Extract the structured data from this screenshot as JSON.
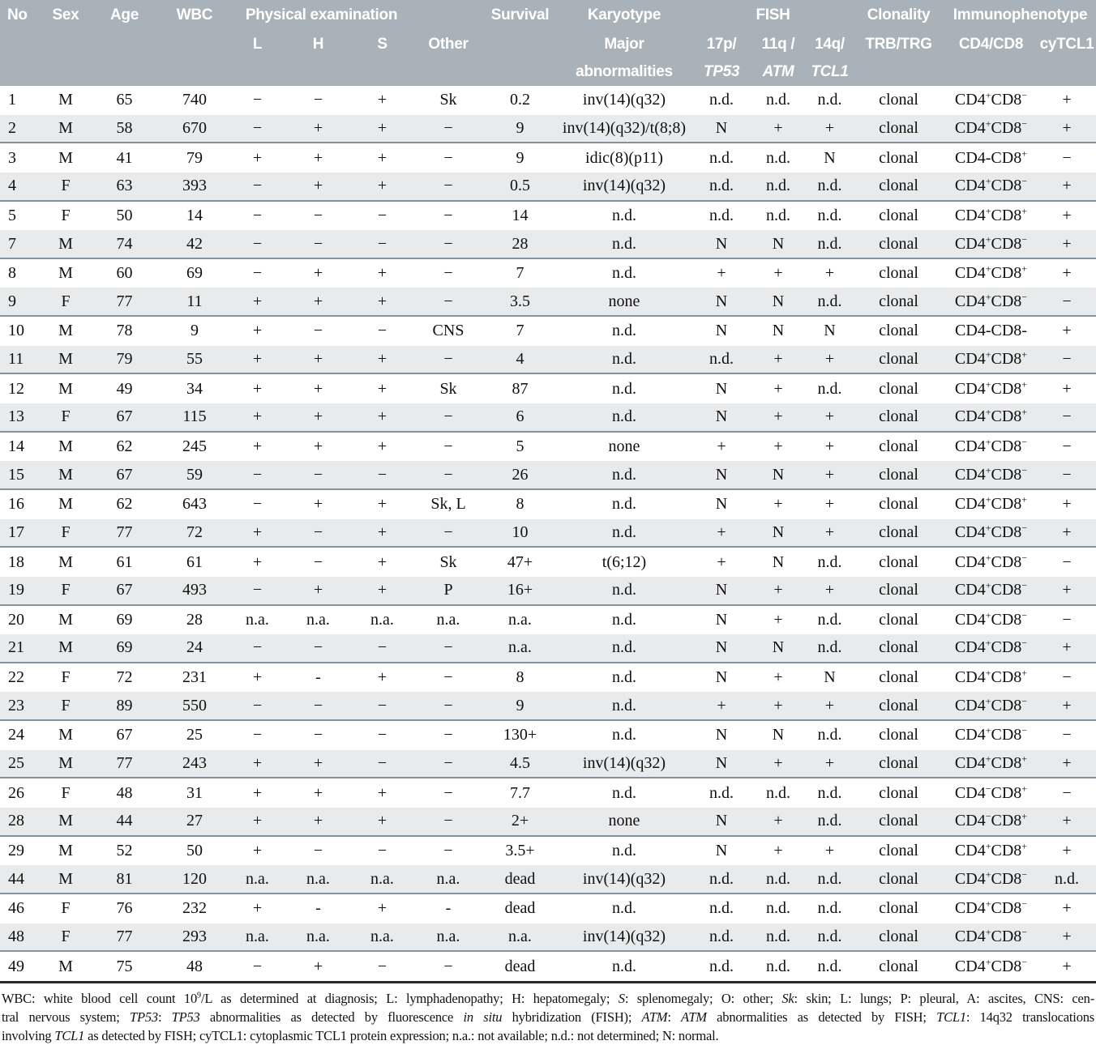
{
  "colors": {
    "header_bg": "#a9b2b9",
    "stripe_bg": "#e8eaec",
    "separator": "#8593a0",
    "bottom_rule": "#2a2a2a",
    "header_text": "#ffffff",
    "body_text": "#101010"
  },
  "table": {
    "header": {
      "no": "No",
      "sex": "Sex",
      "age": "Age",
      "wbc": "WBC",
      "physical_examination": "Physical examination",
      "l": "L",
      "h": "H",
      "s": "S",
      "other": "Other",
      "survival": "Survival",
      "karyotype_line1": "Karyotype",
      "karyotype_line2": "Major",
      "karyotype_line3": "abnormalities",
      "fish": "FISH",
      "tp53_line2": "17p/",
      "tp53_line3": "*TP53*",
      "atm_line2": "11q /",
      "atm_line3": "*ATM*",
      "tcl1_line2": "14q/",
      "tcl1_line3": "*TCL1*",
      "clonality_line1": "Clonality",
      "clonality_line2": "TRB/TRG",
      "immunophenotype_line1": "Immunophenotype",
      "immunophenotype_line2": "CD4/CD8",
      "cytcl1": "cyTCL1"
    },
    "column_keys": [
      "no",
      "sex",
      "age",
      "wbc",
      "exam_l",
      "exam_h",
      "exam_s",
      "exam_other",
      "survival",
      "karyotype",
      "fish_17p_tp53",
      "fish_11q_atm",
      "fish_14q_tcl1",
      "clonality",
      "immunophenotype",
      "cytcl1"
    ],
    "rows": [
      [
        "1",
        "M",
        "65",
        "740",
        "−",
        "−",
        "+",
        "Sk",
        "0.2",
        "inv(14)(q32)",
        "n.d.",
        "n.d.",
        "n.d.",
        "clonal",
        "CD4^+^CD8^−^",
        "+"
      ],
      [
        "2",
        "M",
        "58",
        "670",
        "−",
        "+",
        "+",
        "−",
        "9",
        "inv(14)(q32)/t(8;8)",
        "N",
        "+",
        "+",
        "clonal",
        "CD4^+^CD8^−^",
        "+"
      ],
      [
        "3",
        "M",
        "41",
        "79",
        "+",
        "+",
        "+",
        "−",
        "9",
        "idic(8)(p11)",
        "n.d.",
        "n.d.",
        "N",
        "clonal",
        "CD4-CD8^+^",
        "−"
      ],
      [
        "4",
        "F",
        "63",
        "393",
        "−",
        "+",
        "+",
        "−",
        "0.5",
        "inv(14)(q32)",
        "n.d.",
        "n.d.",
        "n.d.",
        "clonal",
        "CD4^+^CD8^−^",
        "+"
      ],
      [
        "5",
        "F",
        "50",
        "14",
        "−",
        "−",
        "−",
        "−",
        "14",
        "n.d.",
        "n.d.",
        "n.d.",
        "n.d.",
        "clonal",
        "CD4^+^CD8^+^",
        "+"
      ],
      [
        "7",
        "M",
        "74",
        "42",
        "−",
        "−",
        "−",
        "−",
        "28",
        "n.d.",
        "N",
        "N",
        "n.d.",
        "clonal",
        "CD4^+^CD8^−^",
        "+"
      ],
      [
        "8",
        "M",
        "60",
        "69",
        "−",
        "+",
        "+",
        "−",
        "7",
        "n.d.",
        "+",
        "+",
        "+",
        "clonal",
        "CD4^+^CD8^+^",
        "+"
      ],
      [
        "9",
        "F",
        "77",
        "11",
        "+",
        "+",
        "+",
        "−",
        "3.5",
        "none",
        "N",
        "N",
        "n.d.",
        "clonal",
        "CD4^+^CD8^−^",
        "−"
      ],
      [
        "10",
        "M",
        "78",
        "9",
        "+",
        "−",
        "−",
        "CNS",
        "7",
        "n.d.",
        "N",
        "N",
        "N",
        "clonal",
        "CD4-CD8-",
        "+"
      ],
      [
        "11",
        "M",
        "79",
        "55",
        "+",
        "+",
        "+",
        "−",
        "4",
        "n.d.",
        "n.d.",
        "+",
        "+",
        "clonal",
        "CD4^+^CD8^+^",
        "−"
      ],
      [
        "12",
        "M",
        "49",
        "34",
        "+",
        "+",
        "+",
        "Sk",
        "87",
        "n.d.",
        "N",
        "+",
        "n.d.",
        "clonal",
        "CD4^+^CD8^+^",
        "+"
      ],
      [
        "13",
        "F",
        "67",
        "115",
        "+",
        "+",
        "+",
        "−",
        "6",
        "n.d.",
        "N",
        "+",
        "+",
        "clonal",
        "CD4^+^CD8^+^",
        "−"
      ],
      [
        "14",
        "M",
        "62",
        "245",
        "+",
        "+",
        "+",
        "−",
        "5",
        "none",
        "+",
        "+",
        "+",
        "clonal",
        "CD4^+^CD8^−^",
        "−"
      ],
      [
        "15",
        "M",
        "67",
        "59",
        "−",
        "−",
        "−",
        "−",
        "26",
        "n.d.",
        "N",
        "N",
        "+",
        "clonal",
        "CD4^+^CD8^−^",
        "−"
      ],
      [
        "16",
        "M",
        "62",
        "643",
        "−",
        "+",
        "+",
        "Sk, L",
        "8",
        "n.d.",
        "N",
        "+",
        "+",
        "clonal",
        "CD4^+^CD8^+^",
        "+"
      ],
      [
        "17",
        "F",
        "77",
        "72",
        "+",
        "−",
        "+",
        "−",
        "10",
        "n.d.",
        "+",
        "N",
        "+",
        "clonal",
        "CD4^+^CD8^−^",
        "+"
      ],
      [
        "18",
        "M",
        "61",
        "61",
        "+",
        "−",
        "+",
        "Sk",
        "47+",
        "t(6;12)",
        "+",
        "N",
        "n.d.",
        "clonal",
        "CD4^+^CD8^−^",
        "−"
      ],
      [
        "19",
        "F",
        "67",
        "493",
        "−",
        "+",
        "+",
        "P",
        "16+",
        "n.d.",
        "N",
        "+",
        "+",
        "clonal",
        "CD4^+^CD8^−^",
        "+"
      ],
      [
        "20",
        "M",
        "69",
        "28",
        "n.a.",
        "n.a.",
        "n.a.",
        "n.a.",
        "n.a.",
        "n.d.",
        "N",
        "+",
        "n.d.",
        "clonal",
        "CD4^+^CD8^−^",
        "−"
      ],
      [
        "21",
        "M",
        "69",
        "24",
        "−",
        "−",
        "−",
        "−",
        "n.a.",
        "n.d.",
        "N",
        "N",
        "n.d.",
        "clonal",
        "CD4^+^CD8^−^",
        "+"
      ],
      [
        "22",
        "F",
        "72",
        "231",
        "+",
        "-",
        "+",
        "−",
        "8",
        "n.d.",
        "N",
        "+",
        "N",
        "clonal",
        "CD4^+^CD8^+^",
        "−"
      ],
      [
        "23",
        "F",
        "89",
        "550",
        "−",
        "−",
        "−",
        "−",
        "9",
        "n.d.",
        "+",
        "+",
        "+",
        "clonal",
        "CD4^+^CD8^−^",
        "+"
      ],
      [
        "24",
        "M",
        "67",
        "25",
        "−",
        "−",
        "−",
        "−",
        "130+",
        "n.d.",
        "N",
        "N",
        "n.d.",
        "clonal",
        "CD4^+^CD8^−^",
        "−"
      ],
      [
        "25",
        "M",
        "77",
        "243",
        "+",
        "+",
        "−",
        "−",
        "4.5",
        "inv(14)(q32)",
        "N",
        "+",
        "+",
        "clonal",
        "CD4^+^CD8^+^",
        "+"
      ],
      [
        "26",
        "F",
        "48",
        "31",
        "+",
        "+",
        "+",
        "−",
        "7.7",
        "n.d.",
        "n.d.",
        "n.d.",
        "n.d.",
        "clonal",
        "CD4^−^CD8^+^",
        "−"
      ],
      [
        "28",
        "M",
        "44",
        "27",
        "+",
        "+",
        "+",
        "−",
        "2+",
        "none",
        "N",
        "+",
        "n.d.",
        "clonal",
        "CD4^−^CD8^+^",
        "+"
      ],
      [
        "29",
        "M",
        "52",
        "50",
        "+",
        "−",
        "−",
        "−",
        "3.5+",
        "n.d.",
        "N",
        "+",
        "+",
        "clonal",
        "CD4^+^CD8^+^",
        "+"
      ],
      [
        "44",
        "M",
        "81",
        "120",
        "n.a.",
        "n.a.",
        "n.a.",
        "n.a.",
        "dead",
        "inv(14)(q32)",
        "n.d.",
        "n.d.",
        "n.d.",
        "clonal",
        "CD4^+^CD8^−^",
        "n.d."
      ],
      [
        "46",
        "F",
        "76",
        "232",
        "+",
        "-",
        "+",
        "-",
        "dead",
        "n.d.",
        "n.d.",
        "n.d.",
        "n.d.",
        "clonal",
        "CD4^+^CD8^−^",
        "+"
      ],
      [
        "48",
        "F",
        "77",
        "293",
        "n.a.",
        "n.a.",
        "n.a.",
        "n.a.",
        "n.a.",
        "inv(14)(q32)",
        "n.d.",
        "n.d.",
        "n.d.",
        "clonal",
        "CD4^+^CD8^−^",
        "+"
      ],
      [
        "49",
        "M",
        "75",
        "48",
        "−",
        "+",
        "−",
        "−",
        "dead",
        "n.d.",
        "n.d.",
        "n.d.",
        "n.d.",
        "clonal",
        "CD4^+^CD8^−^",
        "+"
      ]
    ]
  },
  "footnote": {
    "lines": [
      "WBC: white blood cell count 10^9^/L as determined at diagnosis; L: lymphadenopathy; H: hepatomegaly; *S*: splenomegaly; O: other; *Sk*: skin; L: lungs; P: pleural, A: ascites, CNS: cen-",
      "tral nervous system; *TP53*: *TP53* abnormalities as detected by fluorescence *in situ* hybridization (FISH); *ATM*: *ATM* abnormalities as detected by FISH; *TCL1*: 14q32 translocations",
      "involving *TCL1* as detected by FISH; cyTCL1: cytoplasmic TCL1 protein expression; n.a.: not available; n.d.: not determined; N: normal."
    ]
  }
}
